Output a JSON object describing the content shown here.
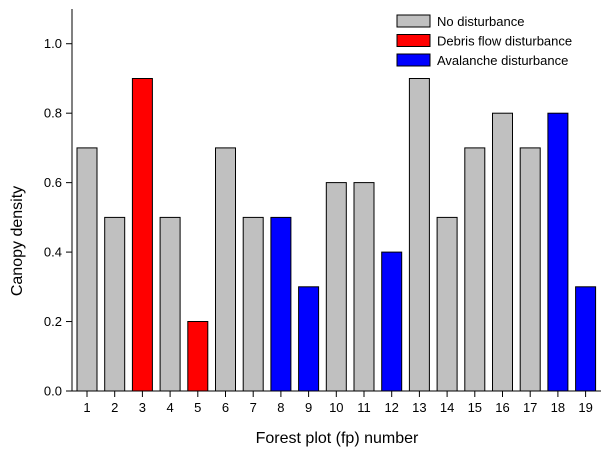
{
  "chart_data": {
    "type": "bar",
    "xlabel": "Forest plot (fp) number",
    "ylabel": "Canopy density",
    "ylim": [
      0,
      1.1
    ],
    "yticks": [
      0.0,
      0.2,
      0.4,
      0.6,
      0.8,
      1.0
    ],
    "ytick_labels": [
      "0.0",
      "0.2",
      "0.4",
      "0.6",
      "0.8",
      "1.0"
    ],
    "categories": [
      "1",
      "2",
      "3",
      "4",
      "5",
      "6",
      "7",
      "8",
      "9",
      "10",
      "11",
      "12",
      "13",
      "14",
      "15",
      "16",
      "17",
      "18",
      "19"
    ],
    "values": [
      0.7,
      0.5,
      0.9,
      0.5,
      0.2,
      0.7,
      0.5,
      0.5,
      0.3,
      0.6,
      0.6,
      0.4,
      0.9,
      0.5,
      0.7,
      0.8,
      0.7,
      0.8,
      0.3
    ],
    "groups": [
      "No disturbance",
      "No disturbance",
      "Debris flow disturbance",
      "No disturbance",
      "Debris flow disturbance",
      "No disturbance",
      "No disturbance",
      "Avalanche disturbance",
      "Avalanche disturbance",
      "No disturbance",
      "No disturbance",
      "Avalanche disturbance",
      "No disturbance",
      "No disturbance",
      "No disturbance",
      "No disturbance",
      "No disturbance",
      "Avalanche disturbance",
      "Avalanche disturbance"
    ],
    "legend": {
      "placement": "top-right",
      "entries": [
        {
          "name": "No disturbance",
          "color": "#c0c0c0"
        },
        {
          "name": "Debris flow disturbance",
          "color": "#ff0000"
        },
        {
          "name": "Avalanche disturbance",
          "color": "#0000ff"
        }
      ]
    },
    "grid": false
  }
}
